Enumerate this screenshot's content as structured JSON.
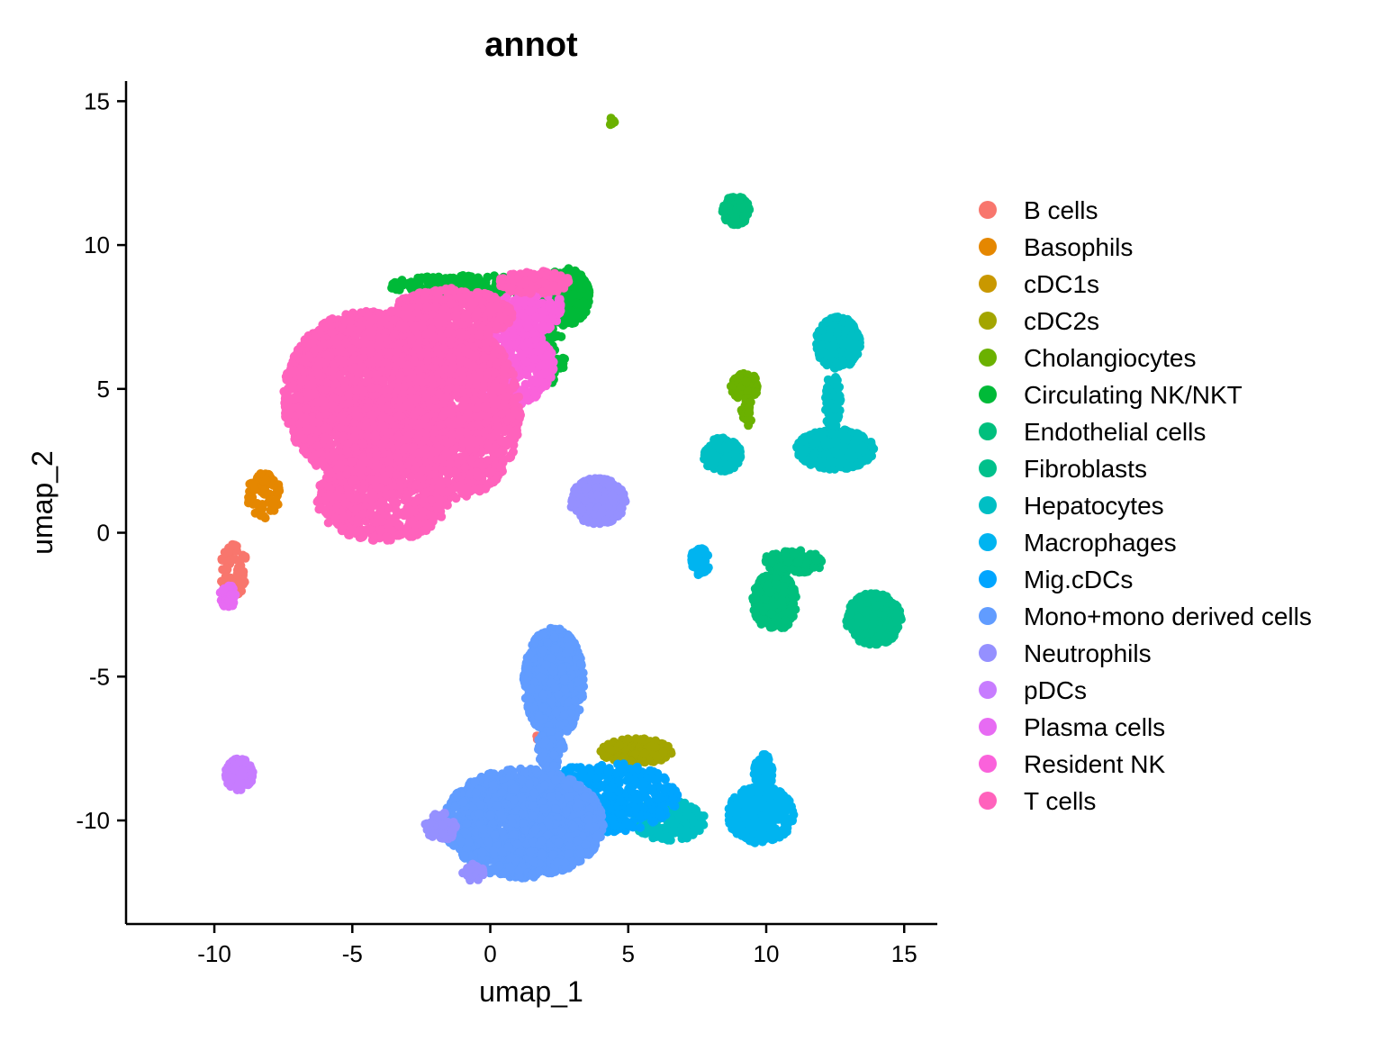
{
  "chart_data": {
    "type": "scatter",
    "title": "annot",
    "xlabel": "umap_1",
    "ylabel": "umap_2",
    "xlim": [
      -13.2,
      16.2
    ],
    "ylim": [
      -13.6,
      15.7
    ],
    "x_ticks": [
      -10,
      -5,
      0,
      5,
      10,
      15
    ],
    "y_ticks": [
      -10,
      -5,
      0,
      5,
      10,
      15
    ],
    "x_tick_labels": [
      "-10",
      "-5",
      "0",
      "5",
      "10",
      "15"
    ],
    "y_tick_labels": [
      "-10",
      "-5",
      "0",
      "5",
      "10",
      "15"
    ],
    "grid": false,
    "legend_position": "right",
    "series": [
      {
        "name": "B cells",
        "color": "#F8766D",
        "clusters": [
          {
            "cx": -9.3,
            "cy": -1.3,
            "rx": 0.5,
            "ry": 0.9,
            "n": 60
          },
          {
            "cx": 1.7,
            "cy": -7.1,
            "rx": 0.1,
            "ry": 0.1,
            "n": 3
          },
          {
            "cx": 1.4,
            "cy": -9.5,
            "rx": 0.1,
            "ry": 0.1,
            "n": 3
          }
        ]
      },
      {
        "name": "Basophils",
        "color": "#E58700",
        "clusters": [
          {
            "cx": -8.2,
            "cy": 1.3,
            "rx": 0.6,
            "ry": 0.8,
            "n": 80
          }
        ]
      },
      {
        "name": "cDC1s",
        "color": "#C99800",
        "clusters": [
          {
            "cx": 5.6,
            "cy": -7.6,
            "rx": 0.6,
            "ry": 0.3,
            "n": 30
          },
          {
            "cx": -4.5,
            "cy": 0.5,
            "rx": 0.1,
            "ry": 0.1,
            "n": 3
          }
        ]
      },
      {
        "name": "cDC2s",
        "color": "#A3A500",
        "clusters": [
          {
            "cx": 5.3,
            "cy": -7.6,
            "rx": 1.3,
            "ry": 0.45,
            "n": 180
          }
        ]
      },
      {
        "name": "Cholangiocytes",
        "color": "#6BB100",
        "clusters": [
          {
            "cx": 4.4,
            "cy": 14.3,
            "rx": 0.12,
            "ry": 0.12,
            "n": 8
          },
          {
            "cx": 9.2,
            "cy": 5.1,
            "rx": 0.5,
            "ry": 0.5,
            "n": 80
          },
          {
            "cx": 9.3,
            "cy": 4.2,
            "rx": 0.2,
            "ry": 0.5,
            "n": 20
          }
        ]
      },
      {
        "name": "Circulating NK/NKT",
        "color": "#00BA38",
        "clusters": [
          {
            "cx": 2.7,
            "cy": 8.2,
            "rx": 0.9,
            "ry": 1.0,
            "n": 400
          },
          {
            "cx": -0.5,
            "cy": 8.6,
            "rx": 3.2,
            "ry": 0.35,
            "n": 240
          },
          {
            "cx": 2.2,
            "cy": 6.2,
            "rx": 0.5,
            "ry": 1.0,
            "n": 60
          }
        ]
      },
      {
        "name": "Endothelial cells",
        "color": "#00BF7D",
        "clusters": [
          {
            "cx": 8.9,
            "cy": 11.2,
            "rx": 0.5,
            "ry": 0.5,
            "n": 120
          },
          {
            "cx": 10.3,
            "cy": -2.4,
            "rx": 0.8,
            "ry": 1.0,
            "n": 320
          },
          {
            "cx": 11.0,
            "cy": -1.0,
            "rx": 1.1,
            "ry": 0.4,
            "n": 150
          }
        ]
      },
      {
        "name": "Fibroblasts",
        "color": "#00C08B",
        "clusters": [
          {
            "cx": 13.9,
            "cy": -3.0,
            "rx": 1.0,
            "ry": 0.9,
            "n": 420
          }
        ]
      },
      {
        "name": "Hepatocytes",
        "color": "#00BFC4",
        "clusters": [
          {
            "cx": 12.6,
            "cy": 6.6,
            "rx": 0.8,
            "ry": 0.9,
            "n": 300
          },
          {
            "cx": 12.5,
            "cy": 2.9,
            "rx": 1.4,
            "ry": 0.7,
            "n": 480
          },
          {
            "cx": 8.4,
            "cy": 2.7,
            "rx": 0.7,
            "ry": 0.6,
            "n": 200
          },
          {
            "cx": 12.4,
            "cy": 4.5,
            "rx": 0.3,
            "ry": 1.0,
            "n": 60
          },
          {
            "cx": 6.5,
            "cy": -10.0,
            "rx": 1.3,
            "ry": 0.7,
            "n": 260
          }
        ]
      },
      {
        "name": "Macrophages",
        "color": "#00B4F0",
        "clusters": [
          {
            "cx": 9.8,
            "cy": -9.8,
            "rx": 1.2,
            "ry": 1.0,
            "n": 360
          },
          {
            "cx": 9.9,
            "cy": -8.3,
            "rx": 0.35,
            "ry": 0.6,
            "n": 80
          },
          {
            "cx": 7.6,
            "cy": -1.0,
            "rx": 0.35,
            "ry": 0.5,
            "n": 60
          }
        ]
      },
      {
        "name": "Mig.cDCs",
        "color": "#00A5FF",
        "clusters": [
          {
            "cx": 4.2,
            "cy": -9.2,
            "rx": 2.6,
            "ry": 1.2,
            "n": 500
          }
        ]
      },
      {
        "name": "Mono+mono derived cells",
        "color": "#619CFF",
        "clusters": [
          {
            "cx": 1.2,
            "cy": -10.1,
            "rx": 2.9,
            "ry": 1.9,
            "n": 1700
          },
          {
            "cx": 2.3,
            "cy": -5.2,
            "rx": 1.1,
            "ry": 1.9,
            "n": 650
          },
          {
            "cx": 2.2,
            "cy": -7.5,
            "rx": 0.5,
            "ry": 0.7,
            "n": 100
          }
        ]
      },
      {
        "name": "Neutrophils",
        "color": "#9590FF",
        "clusters": [
          {
            "cx": 3.9,
            "cy": 1.1,
            "rx": 1.0,
            "ry": 0.8,
            "n": 380
          },
          {
            "cx": -1.8,
            "cy": -10.2,
            "rx": 0.6,
            "ry": 0.5,
            "n": 60
          },
          {
            "cx": -0.6,
            "cy": -11.8,
            "rx": 0.4,
            "ry": 0.3,
            "n": 30
          }
        ]
      },
      {
        "name": "pDCs",
        "color": "#C77CFF",
        "clusters": [
          {
            "cx": -9.1,
            "cy": -8.4,
            "rx": 0.5,
            "ry": 0.55,
            "n": 140
          }
        ]
      },
      {
        "name": "Plasma cells",
        "color": "#E76BF3",
        "clusters": [
          {
            "cx": -9.5,
            "cy": -2.2,
            "rx": 0.3,
            "ry": 0.4,
            "n": 40
          }
        ]
      },
      {
        "name": "Resident NK",
        "color": "#FA62DB",
        "clusters": [
          {
            "cx": 0.6,
            "cy": 5.9,
            "rx": 1.7,
            "ry": 1.5,
            "n": 500
          },
          {
            "cx": 1.5,
            "cy": 7.8,
            "rx": 1.1,
            "ry": 0.9,
            "n": 160
          }
        ]
      },
      {
        "name": "T cells",
        "color": "#FF62BC",
        "clusters": [
          {
            "cx": -4.5,
            "cy": 4.7,
            "rx": 3.0,
            "ry": 3.0,
            "n": 2600
          },
          {
            "cx": -1.2,
            "cy": 4.2,
            "rx": 2.3,
            "ry": 3.0,
            "n": 1400
          },
          {
            "cx": -3.9,
            "cy": 1.2,
            "rx": 2.4,
            "ry": 1.5,
            "n": 600
          },
          {
            "cx": -1.4,
            "cy": 7.6,
            "rx": 2.2,
            "ry": 0.9,
            "n": 400
          },
          {
            "cx": 1.6,
            "cy": 8.7,
            "rx": 1.3,
            "ry": 0.4,
            "n": 150
          }
        ]
      }
    ]
  }
}
